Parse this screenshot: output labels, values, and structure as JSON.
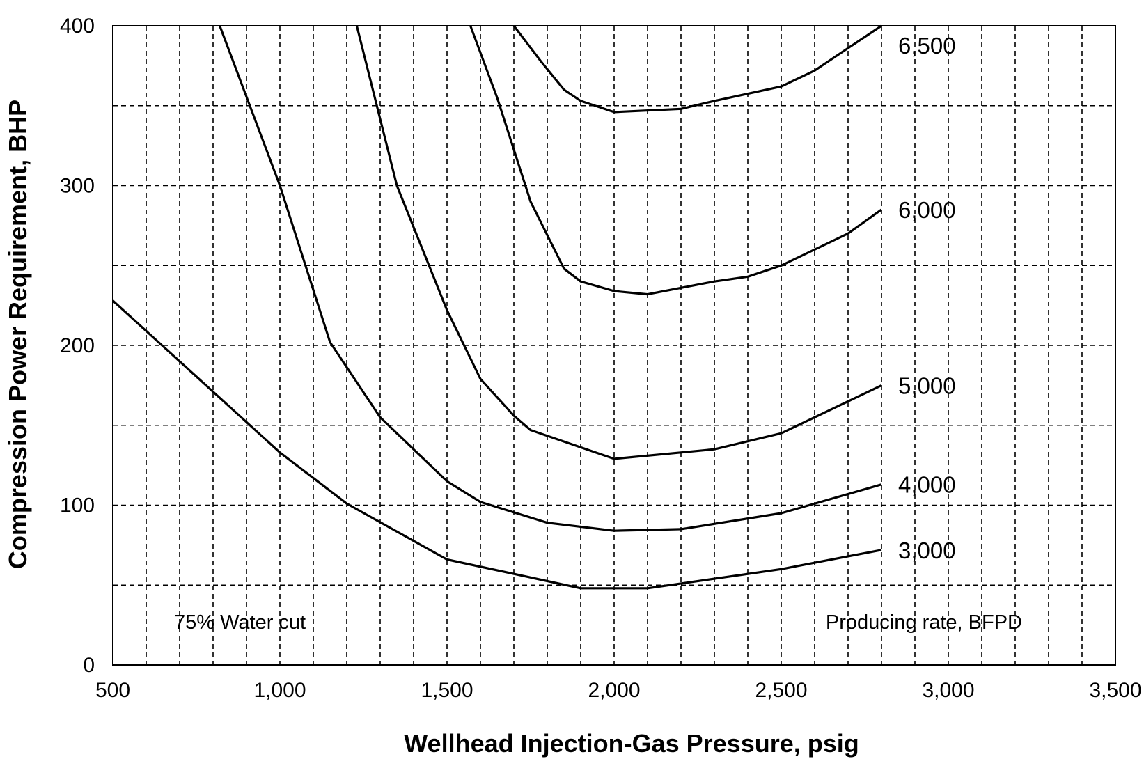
{
  "chart_data": {
    "type": "line",
    "xlabel": "Wellhead Injection-Gas Pressure, psig",
    "ylabel": "Compression Power Requirement, BHP",
    "xlim": [
      500,
      3500
    ],
    "ylim": [
      0,
      400
    ],
    "x_ticks": [
      500,
      1000,
      1500,
      2000,
      2500,
      3000,
      3500
    ],
    "x_tick_labels": [
      "500",
      "1,000",
      "1,500",
      "2,000",
      "2,500",
      "3,000",
      "3,500"
    ],
    "y_ticks": [
      0,
      100,
      200,
      300,
      400
    ],
    "y_tick_labels": [
      "0",
      "100",
      "200",
      "300",
      "400"
    ],
    "x_grid": [
      600,
      700,
      800,
      900,
      1000,
      1100,
      1200,
      1300,
      1400,
      1500,
      1600,
      1700,
      1800,
      1900,
      2000,
      2100,
      2200,
      2300,
      2400,
      2500,
      2600,
      2700,
      2800,
      2900,
      3000,
      3100,
      3200,
      3300,
      3400
    ],
    "y_grid": [
      50,
      100,
      150,
      200,
      250,
      300,
      350
    ],
    "grid": true,
    "annotations": [
      "75% Water cut",
      "Producing rate, BFPD"
    ],
    "series": [
      {
        "name": "3,000",
        "x": [
          500,
          1000,
          1200,
          1500,
          1900,
          2100,
          2500,
          2800
        ],
        "y": [
          228,
          133,
          101,
          66,
          48,
          48,
          60,
          72
        ]
      },
      {
        "name": "4,000",
        "x": [
          820,
          1000,
          1150,
          1300,
          1500,
          1600,
          1800,
          2000,
          2200,
          2500,
          2800
        ],
        "y": [
          400,
          300,
          202,
          155,
          115,
          102,
          89,
          84,
          85,
          95,
          113
        ]
      },
      {
        "name": "5,000",
        "x": [
          1230,
          1350,
          1500,
          1600,
          1700,
          1750,
          2000,
          2300,
          2500,
          2800
        ],
        "y": [
          400,
          300,
          222,
          179,
          156,
          147,
          129,
          135,
          145,
          175
        ]
      },
      {
        "name": "6,000",
        "x": [
          1570,
          1650,
          1750,
          1850,
          1900,
          2000,
          2100,
          2300,
          2400,
          2500,
          2700,
          2800
        ],
        "y": [
          400,
          355,
          290,
          248,
          240,
          234,
          232,
          240,
          243,
          250,
          270,
          285
        ]
      },
      {
        "name": "6,500",
        "x": [
          1700,
          1780,
          1850,
          1900,
          2000,
          2200,
          2300,
          2500,
          2600,
          2700,
          2800
        ],
        "y": [
          400,
          378,
          360,
          353,
          346,
          348,
          353,
          362,
          372,
          386,
          401
        ]
      }
    ]
  }
}
